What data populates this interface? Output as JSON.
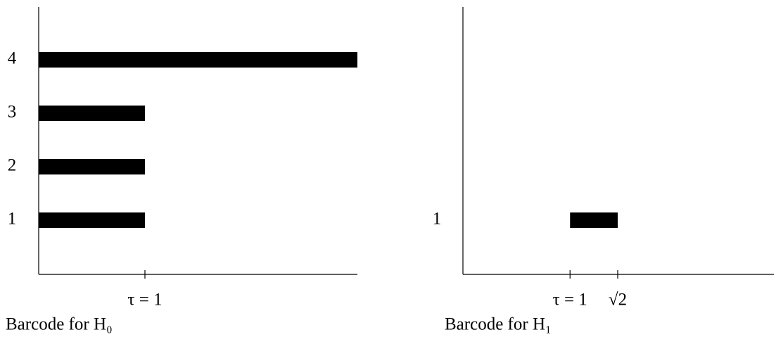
{
  "chart_data": [
    {
      "type": "barcode",
      "title": "Barcode for H₀",
      "categories": [
        "1",
        "2",
        "3",
        "4"
      ],
      "bars": [
        {
          "start": 0,
          "end": 1
        },
        {
          "start": 0,
          "end": 1
        },
        {
          "start": 0,
          "end": 1
        },
        {
          "start": 0,
          "end": 3
        }
      ],
      "color": "#000000",
      "xlim": [
        0,
        3
      ],
      "xticks": [
        {
          "value": 1,
          "label": "τ = 1"
        }
      ]
    },
    {
      "type": "barcode",
      "title": "Barcode for H₁",
      "categories": [
        "1"
      ],
      "bars": [
        {
          "start": 1,
          "end": 1.414
        }
      ],
      "color": "#000000",
      "xlim": [
        0.07,
        2.77
      ],
      "xticks": [
        {
          "value": 1,
          "label": "τ = 1"
        },
        {
          "value": 1.414,
          "label": "√2"
        }
      ]
    }
  ]
}
